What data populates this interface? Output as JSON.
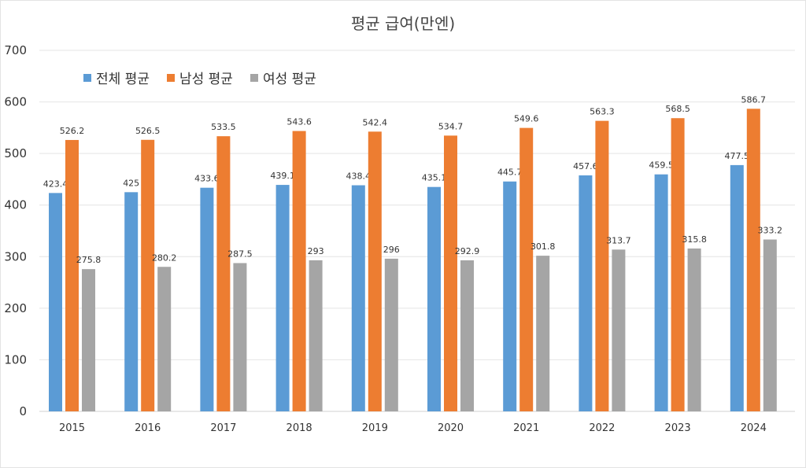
{
  "chart_data": {
    "type": "bar",
    "title": "평균 급여(만엔)",
    "categories": [
      "2015",
      "2016",
      "2017",
      "2018",
      "2019",
      "2020",
      "2021",
      "2022",
      "2023",
      "2024"
    ],
    "series": [
      {
        "name": "전체 평균",
        "color": "#5b9bd5",
        "values": [
          423.4,
          425,
          433.6,
          439.1,
          438.4,
          435.1,
          445.7,
          457.6,
          459.5,
          477.5
        ]
      },
      {
        "name": "남성 평균",
        "color": "#ed7d31",
        "values": [
          526.2,
          526.5,
          533.5,
          543.6,
          542.4,
          534.7,
          549.6,
          563.3,
          568.5,
          586.7
        ]
      },
      {
        "name": "여성 평균",
        "color": "#a5a5a5",
        "values": [
          275.8,
          280.2,
          287.5,
          293,
          296,
          292.9,
          301.8,
          313.7,
          315.8,
          333.2
        ]
      }
    ],
    "ylim": [
      0,
      700
    ],
    "yticks": [
      0,
      100,
      200,
      300,
      400,
      500,
      600,
      700
    ],
    "grid": true,
    "legend_position": "top-left"
  }
}
